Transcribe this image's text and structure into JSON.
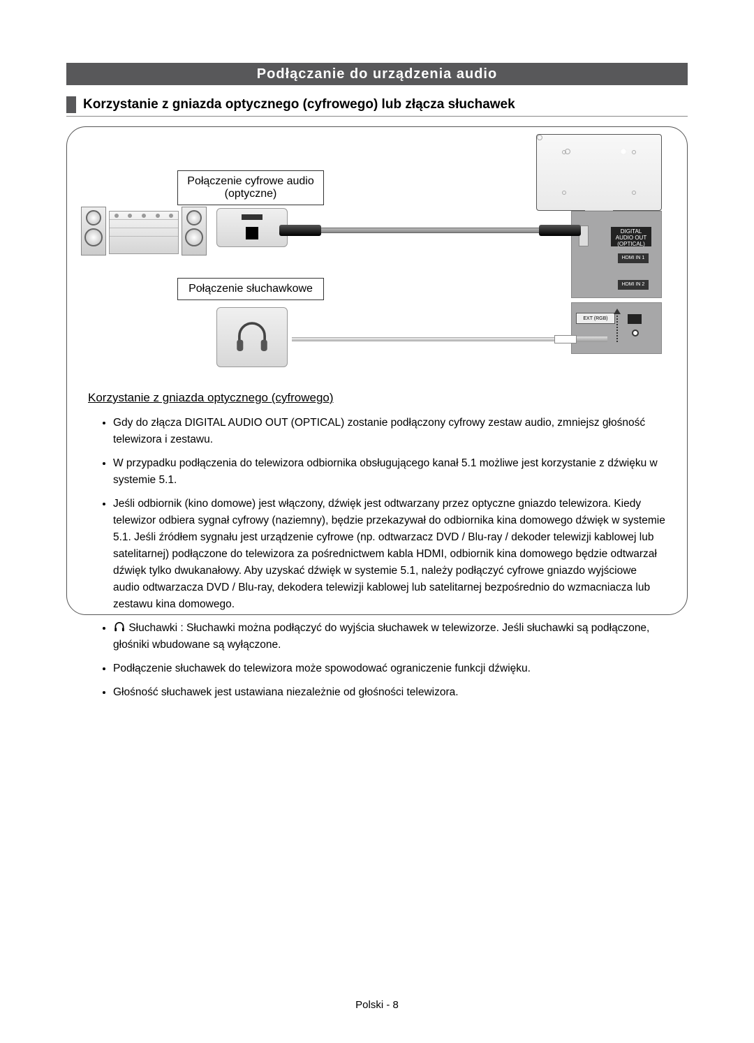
{
  "section_title": "Podłączanie do urządzenia audio",
  "subheader": "Korzystanie z gniazda optycznego (cyfrowego) lub złącza słuchawek",
  "label_optical": "Połączenie cyfrowe audio (optyczne)",
  "label_headphone": "Połączenie słuchawkowe",
  "panel": {
    "digital": "DIGITAL\nAUDIO OUT\n(OPTICAL)",
    "hdmi1": "HDMI IN 1",
    "hdmi2": "HDMI IN 2",
    "ext": "EXT (RGB)",
    "jack": ""
  },
  "under_title": "Korzystanie z gniazda optycznego (cyfrowego)",
  "bullets": [
    "Gdy do złącza DIGITAL AUDIO OUT (OPTICAL) zostanie podłączony cyfrowy zestaw audio, zmniejsz głośność telewizora i zestawu.",
    "W przypadku podłączenia do telewizora odbiornika obsługującego kanał 5.1 możliwe jest korzystanie z dźwięku w systemie 5.1.",
    "Jeśli odbiornik (kino domowe) jest włączony, dźwięk jest odtwarzany przez optyczne gniazdo telewizora. Kiedy telewizor odbiera sygnał cyfrowy (naziemny), będzie przekazywał do odbiornika kina domowego dźwięk w systemie 5.1. Jeśli źródłem sygnału jest urządzenie cyfrowe (np. odtwarzacz DVD / Blu-ray / dekoder telewizji kablowej lub satelitarnej) podłączone do telewizora za pośrednictwem kabla HDMI, odbiornik kina domowego będzie odtwarzał dźwięk tylko dwukanałowy. Aby uzyskać dźwięk w systemie 5.1, należy podłączyć cyfrowe gniazdo wyjściowe audio odtwarzacza DVD / Blu-ray, dekodera telewizji kablowej lub satelitarnej bezpośrednio do wzmacniacza lub zestawu kina domowego.",
    "Słuchawki : Słuchawki można podłączyć do wyjścia słuchawek w telewizorze. Jeśli słuchawki są podłączone, głośniki wbudowane są wyłączone.",
    "Podłączenie słuchawek do telewizora może spowodować ograniczenie funkcji dźwięku.",
    "Głośność słuchawek jest ustawiana niezależnie od głośności telewizora."
  ],
  "page_number": "Polski - 8",
  "colors": {
    "bar_bg": "#58585a",
    "panel_bg": "#a7a7a8"
  }
}
